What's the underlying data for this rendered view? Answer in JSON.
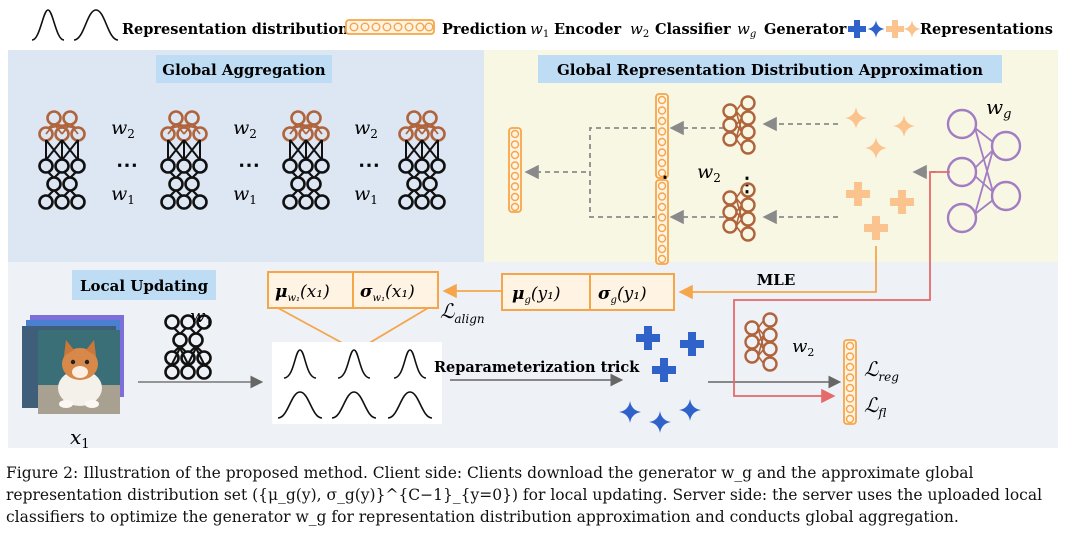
{
  "legend": {
    "representation_distributions": "Representation distributions",
    "prediction": "Prediction",
    "encoder_symbol": "w",
    "encoder_sub": "1",
    "encoder": "Encoder",
    "classifier_symbol": "w",
    "classifier_sub": "2",
    "classifier": "Classifier",
    "generator_symbol": "w",
    "generator_sub": "g",
    "generator": "Generator",
    "representations": "Representations"
  },
  "panels": {
    "global_aggregation": "Global Aggregation",
    "grda": "Global Representation Distribution Approximation",
    "local_updating": "Local Updating"
  },
  "labels": {
    "w2": "w",
    "w2_sub": "2",
    "w1": "w",
    "w1_sub": "1",
    "wg": "w",
    "wg_sub": "g",
    "dots": "⋯",
    "vdots": "⋮",
    "mle": "MLE",
    "reparam": "Reparameterization trick",
    "x1": "x",
    "x1_sub": "1"
  },
  "math": {
    "mu_w1": "μ",
    "mu_w1_sub": "w₁",
    "mu_w1_arg": "(x₁)",
    "sigma_w1": "σ",
    "sigma_w1_sub": "w₁",
    "sigma_w1_arg": "(x₁)",
    "mu_g": "μ",
    "mu_g_sub": "g",
    "mu_g_arg": "(y₁)",
    "sigma_g": "σ",
    "sigma_g_sub": "g",
    "sigma_g_arg": "(y₁)",
    "l_align": "ℒ",
    "l_align_sub": "align",
    "l_reg": "ℒ",
    "l_reg_sub": "reg",
    "l_fl": "ℒ",
    "l_fl_sub": "fl"
  },
  "colors": {
    "blue_panel": "#dde6f3",
    "yellow_panel": "#f8f7e3",
    "grey_panel": "#eef1f6",
    "title_highlight": "#bfdcf5",
    "orange": "#f5a64a",
    "brown": "#b0643c",
    "purple": "#a37dc4",
    "blue_plus": "#2f63c9",
    "peach": "#fbc38e",
    "red": "#e56a6a",
    "grey_arrow": "#8a8a8a"
  },
  "caption": {
    "line1": "Figure 2: Illustration of the proposed method. Client side: Clients download the generator w_g and the approximate global",
    "line2": "representation distribution set ({μ_g(y), σ_g(y)}^{C−1}_{y=0}) for local updating. Server side: the server uses the uploaded local",
    "line3": "classifiers to optimize the generator w_g for representation distribution approximation and conducts global aggregation."
  }
}
